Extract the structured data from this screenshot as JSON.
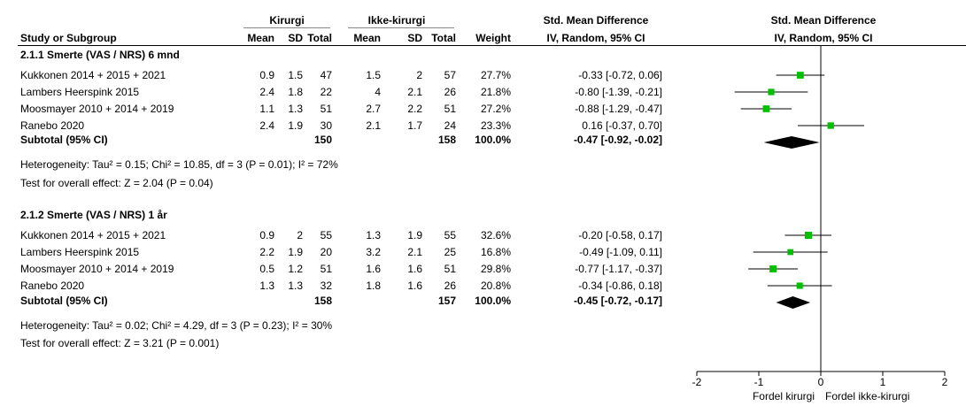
{
  "header": {
    "group1": "Kirurgi",
    "group2": "Ikke-kirurgi",
    "effect_title": "Std. Mean Difference",
    "effect_method": "IV, Random, 95% CI",
    "plot_title": "Std. Mean Difference",
    "plot_method": "IV, Random, 95% CI",
    "col_study": "Study or Subgroup",
    "col_mean1": "Mean",
    "col_sd1": "SD",
    "col_total1": "Total",
    "col_mean2": "Mean",
    "col_sd2": "SD",
    "col_total2": "Total",
    "col_weight": "Weight"
  },
  "subgroups": [
    {
      "title": "2.1.1 Smerte (VAS / NRS) 6 mnd",
      "studies": [
        {
          "name": "Kukkonen 2014 + 2015 + 2021",
          "mean1": "0.9",
          "sd1": "1.5",
          "total1": "47",
          "mean2": "1.5",
          "sd2": "2",
          "total2": "57",
          "weight": "27.7%",
          "ci_text": "-0.33 [-0.72, 0.06]"
        },
        {
          "name": "Lambers Heerspink 2015",
          "mean1": "2.4",
          "sd1": "1.8",
          "total1": "22",
          "mean2": "4",
          "sd2": "2.1",
          "total2": "26",
          "weight": "21.8%",
          "ci_text": "-0.80 [-1.39, -0.21]"
        },
        {
          "name": "Moosmayer 2010 + 2014 + 2019",
          "mean1": "1.1",
          "sd1": "1.3",
          "total1": "51",
          "mean2": "2.7",
          "sd2": "2.2",
          "total2": "51",
          "weight": "27.2%",
          "ci_text": "-0.88 [-1.29, -0.47]"
        },
        {
          "name": "Ranebo 2020",
          "mean1": "2.4",
          "sd1": "1.9",
          "total1": "30",
          "mean2": "2.1",
          "sd2": "1.7",
          "total2": "24",
          "weight": "23.3%",
          "ci_text": "0.16 [-0.37, 0.70]"
        }
      ],
      "subtotal": {
        "label": "Subtotal (95% CI)",
        "total1": "150",
        "total2": "158",
        "weight": "100.0%",
        "ci_text": "-0.47 [-0.92, -0.02]"
      },
      "heterogeneity": "Heterogeneity: Tau² = 0.15; Chi² = 10.85, df = 3 (P = 0.01); I² = 72%",
      "overall": "Test for overall effect: Z = 2.04 (P = 0.04)"
    },
    {
      "title": "2.1.2 Smerte (VAS / NRS) 1 år",
      "studies": [
        {
          "name": "Kukkonen 2014 + 2015 + 2021",
          "mean1": "0.9",
          "sd1": "2",
          "total1": "55",
          "mean2": "1.3",
          "sd2": "1.9",
          "total2": "55",
          "weight": "32.6%",
          "ci_text": "-0.20 [-0.58, 0.17]"
        },
        {
          "name": "Lambers Heerspink 2015",
          "mean1": "2.2",
          "sd1": "1.9",
          "total1": "20",
          "mean2": "3.2",
          "sd2": "2.1",
          "total2": "25",
          "weight": "16.8%",
          "ci_text": "-0.49 [-1.09, 0.11]"
        },
        {
          "name": "Moosmayer 2010 + 2014 + 2019",
          "mean1": "0.5",
          "sd1": "1.2",
          "total1": "51",
          "mean2": "1.6",
          "sd2": "1.6",
          "total2": "51",
          "weight": "29.8%",
          "ci_text": "-0.77 [-1.17, -0.37]"
        },
        {
          "name": "Ranebo 2020",
          "mean1": "1.3",
          "sd1": "1.3",
          "total1": "32",
          "mean2": "1.8",
          "sd2": "1.6",
          "total2": "26",
          "weight": "20.8%",
          "ci_text": "-0.34 [-0.86, 0.18]"
        }
      ],
      "subtotal": {
        "label": "Subtotal (95% CI)",
        "total1": "158",
        "total2": "157",
        "weight": "100.0%",
        "ci_text": "-0.45 [-0.72, -0.17]"
      },
      "heterogeneity": "Heterogeneity: Tau² = 0.02; Chi² = 4.29, df = 3 (P = 0.23); I² = 30%",
      "overall": "Test for overall effect: Z = 3.21 (P = 0.001)"
    }
  ],
  "axis": {
    "ticks": [
      "-2",
      "-1",
      "0",
      "1",
      "2"
    ],
    "label_left": "Fordel kirurgi",
    "label_right": "Fordel ikke-kirurgi"
  },
  "colors": {
    "marker": "#00c000",
    "diamond": "#000000",
    "line": "#000000"
  },
  "chart_data": {
    "type": "forest",
    "xlim": [
      -2,
      2
    ],
    "ticks": [
      -2,
      -1,
      0,
      1,
      2
    ],
    "null_line": 0,
    "series": [
      {
        "estimates": [
          -0.33,
          -0.8,
          -0.88,
          0.16
        ],
        "lower": [
          -0.72,
          -1.39,
          -1.29,
          -0.37
        ],
        "upper": [
          0.06,
          -0.21,
          -0.47,
          0.7
        ],
        "weights": [
          27.7,
          21.8,
          27.2,
          23.3
        ],
        "pooled": {
          "est": -0.47,
          "lo": -0.92,
          "hi": -0.02
        }
      },
      {
        "estimates": [
          -0.2,
          -0.49,
          -0.77,
          -0.34
        ],
        "lower": [
          -0.58,
          -1.09,
          -1.17,
          -0.86
        ],
        "upper": [
          0.17,
          0.11,
          -0.37,
          0.18
        ],
        "weights": [
          32.6,
          16.8,
          29.8,
          20.8
        ],
        "pooled": {
          "est": -0.45,
          "lo": -0.72,
          "hi": -0.17
        }
      }
    ]
  }
}
